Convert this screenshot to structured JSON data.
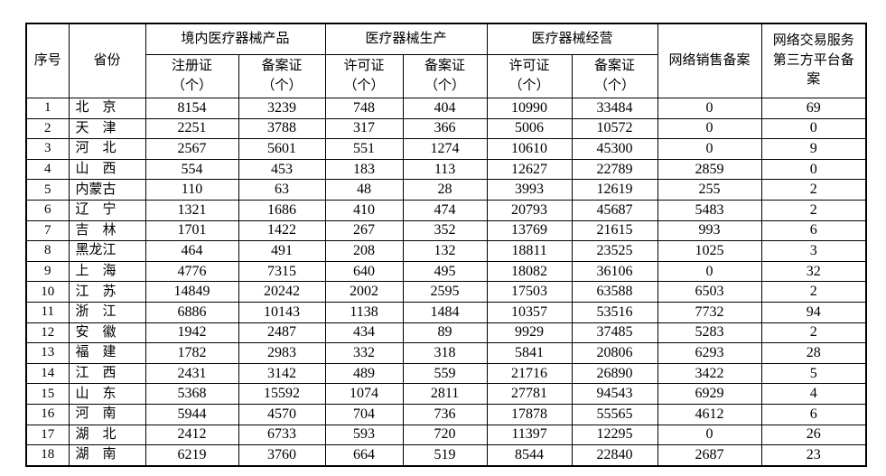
{
  "page": {
    "background_color": "#ffffff",
    "text_color": "#000000",
    "border_color": "#000000"
  },
  "table": {
    "header": {
      "index": "序号",
      "province": "省份",
      "groups": [
        {
          "label": "境内医疗器械产品",
          "subs": [
            {
              "line1": "注册证",
              "line2": "（个）"
            },
            {
              "line1": "备案证",
              "line2": "（个）"
            }
          ]
        },
        {
          "label": "医疗器械生产",
          "subs": [
            {
              "line1": "许可证",
              "line2": "（个）"
            },
            {
              "line1": "备案证",
              "line2": "（个）"
            }
          ]
        },
        {
          "label": "医疗器械经营",
          "subs": [
            {
              "line1": "许可证",
              "line2": "（个）"
            },
            {
              "line1": "备案证",
              "line2": "（个）"
            }
          ]
        }
      ],
      "network_sales": "网络销售备案",
      "network_platform": "网络交易服务第三方平台备案"
    },
    "rows": [
      {
        "no": "1",
        "province": "北　京",
        "values": [
          "8154",
          "3239",
          "748",
          "404",
          "10990",
          "33484",
          "0",
          "69"
        ]
      },
      {
        "no": "2",
        "province": "天　津",
        "values": [
          "2251",
          "3788",
          "317",
          "366",
          "5006",
          "10572",
          "0",
          "0"
        ]
      },
      {
        "no": "3",
        "province": "河　北",
        "values": [
          "2567",
          "5601",
          "551",
          "1274",
          "10610",
          "45300",
          "0",
          "9"
        ]
      },
      {
        "no": "4",
        "province": "山　西",
        "values": [
          "554",
          "453",
          "183",
          "113",
          "12627",
          "22789",
          "2859",
          "0"
        ]
      },
      {
        "no": "5",
        "province": "内蒙古",
        "values": [
          "110",
          "63",
          "48",
          "28",
          "3993",
          "12619",
          "255",
          "2"
        ]
      },
      {
        "no": "6",
        "province": "辽　宁",
        "values": [
          "1321",
          "1686",
          "410",
          "474",
          "20793",
          "45687",
          "5483",
          "2"
        ]
      },
      {
        "no": "7",
        "province": "吉　林",
        "values": [
          "1701",
          "1422",
          "267",
          "352",
          "13769",
          "21615",
          "993",
          "6"
        ]
      },
      {
        "no": "8",
        "province": "黑龙江",
        "values": [
          "464",
          "491",
          "208",
          "132",
          "18811",
          "23525",
          "1025",
          "3"
        ]
      },
      {
        "no": "9",
        "province": "上　海",
        "values": [
          "4776",
          "7315",
          "640",
          "495",
          "18082",
          "36106",
          "0",
          "32"
        ]
      },
      {
        "no": "10",
        "province": "江　苏",
        "values": [
          "14849",
          "20242",
          "2002",
          "2595",
          "17503",
          "63588",
          "6503",
          "2"
        ]
      },
      {
        "no": "11",
        "province": "浙　江",
        "values": [
          "6886",
          "10143",
          "1138",
          "1484",
          "10357",
          "53516",
          "7732",
          "94"
        ]
      },
      {
        "no": "12",
        "province": "安　徽",
        "values": [
          "1942",
          "2487",
          "434",
          "89",
          "9929",
          "37485",
          "5283",
          "2"
        ]
      },
      {
        "no": "13",
        "province": "福　建",
        "values": [
          "1782",
          "2983",
          "332",
          "318",
          "5841",
          "20806",
          "6293",
          "28"
        ]
      },
      {
        "no": "14",
        "province": "江　西",
        "values": [
          "2431",
          "3142",
          "489",
          "559",
          "21716",
          "26890",
          "3422",
          "5"
        ]
      },
      {
        "no": "15",
        "province": "山　东",
        "values": [
          "5368",
          "15592",
          "1074",
          "2811",
          "27781",
          "94543",
          "6929",
          "4"
        ]
      },
      {
        "no": "16",
        "province": "河　南",
        "values": [
          "5944",
          "4570",
          "704",
          "736",
          "17878",
          "55565",
          "4612",
          "6"
        ]
      },
      {
        "no": "17",
        "province": "湖　北",
        "values": [
          "2412",
          "6733",
          "593",
          "720",
          "11397",
          "12295",
          "0",
          "26"
        ]
      },
      {
        "no": "18",
        "province": "湖　南",
        "values": [
          "6219",
          "3760",
          "664",
          "519",
          "8544",
          "22840",
          "2687",
          "23"
        ]
      }
    ]
  }
}
